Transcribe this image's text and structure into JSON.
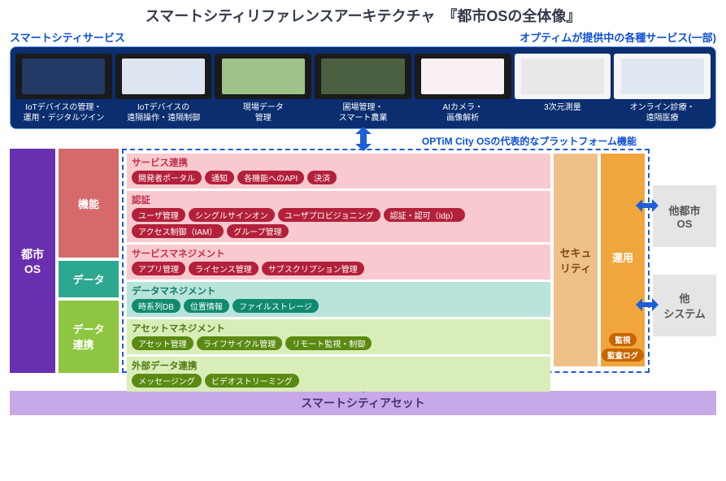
{
  "title": "スマートシティリファレンスアーキテクチャ　『都市OSの全体像』",
  "subtitle_left": "スマートシティサービス",
  "subtitle_right": "オプティムが提供中の各種サービス(一部)",
  "colors": {
    "title": "#333a4a",
    "accent_blue": "#0e4fd6",
    "services_panel_bg": "#0b2e70",
    "services_panel_border": "#6fa7ff",
    "dash_border": "#1e5ed8",
    "city_os_bg": "#6a2fb0",
    "kinou_bg": "#d66a6a",
    "data_bg": "#2da890",
    "data_renkei_bg": "#8ec641",
    "asset_bg": "#c7a9e8",
    "grp_pink_bg": "#f8c9cf",
    "grp_pink_title": "#c0304b",
    "grp_pink_pill": "#b3203a",
    "grp_teal_bg": "#b9e4d9",
    "grp_teal_title": "#0e7a67",
    "grp_teal_pill": "#108a6f",
    "grp_lime_bg": "#d9edb8",
    "grp_lime_title": "#4d7a10",
    "grp_lime_pill": "#5a8a12",
    "sec_bg": "#f0c089",
    "sec_text": "#7a4a10",
    "op_bg": "#f0a63c",
    "op_text": "#ffffff",
    "op_pill": "#c76500",
    "ext_bg": "#e5e5e5",
    "ext_text": "#555555",
    "platform_title": "#0e4fd6"
  },
  "services": [
    {
      "label": "IoTデバイスの管理・\n運用・デジタルツイン",
      "thumb_bg": "#1a1a1a",
      "screen_bg": "#243a66"
    },
    {
      "label": "IoTデバイスの\n遠隔操作・遠隔制御",
      "thumb_bg": "#1a1a1a",
      "screen_bg": "#dde6f0"
    },
    {
      "label": "現場データ\n管理",
      "thumb_bg": "#1a1a1a",
      "screen_bg": "#9fc28a"
    },
    {
      "label": "圃場管理・\nスマート農業",
      "thumb_bg": "#1a1a1a",
      "screen_bg": "#4a6040"
    },
    {
      "label": "AIカメラ・\n画像解析",
      "thumb_bg": "#1a1a1a",
      "screen_bg": "#f8f0f3"
    },
    {
      "label": "3次元測量",
      "thumb_bg": "#f5f5f5",
      "screen_bg": "#e8e8e8"
    },
    {
      "label": "オンライン診療・\n遠隔医療",
      "thumb_bg": "#f5f5f5",
      "screen_bg": "#dfe8f2"
    }
  ],
  "platform_title": "OPTiM City OSの代表的なプラットフォーム機能",
  "left": {
    "city_os": "都市\nOS",
    "kinou": "機能",
    "data": "データ",
    "data_renkei": "データ\n連携"
  },
  "groups": [
    {
      "style": "pink",
      "title": "サービス連携",
      "pills": [
        "開発者ポータル",
        "通知",
        "各機能へのAPI",
        "決済"
      ]
    },
    {
      "style": "pink",
      "title": "認証",
      "pills": [
        "ユーザ管理",
        "シングルサインオン",
        "ユーザプロビジョニング",
        "認証・認可（Idp）",
        "アクセス制御（IAM）",
        "グループ管理"
      ]
    },
    {
      "style": "pink",
      "title": "サービスマネジメント",
      "pills": [
        "アプリ管理",
        "ライセンス管理",
        "サブスクリプション管理"
      ]
    },
    {
      "style": "teal",
      "title": "データマネジメント",
      "pills": [
        "時系列DB",
        "位置情報",
        "ファイルストレージ"
      ]
    },
    {
      "style": "lime",
      "title": "アセットマネジメント",
      "pills": [
        "アセット管理",
        "ライフサイクル管理",
        "リモート監視・制御"
      ]
    },
    {
      "style": "lime",
      "title": "外部データ連携",
      "pills": [
        "メッセージング",
        "ビデオストリーミング"
      ]
    }
  ],
  "security_label": "セキュ\nリティ",
  "operation_label": "運用",
  "operation_pills": [
    "監視",
    "監査ログ"
  ],
  "external": [
    {
      "label": "他都市\nOS"
    },
    {
      "label": "他\nシステム"
    }
  ],
  "asset_label": "スマートシティアセット"
}
